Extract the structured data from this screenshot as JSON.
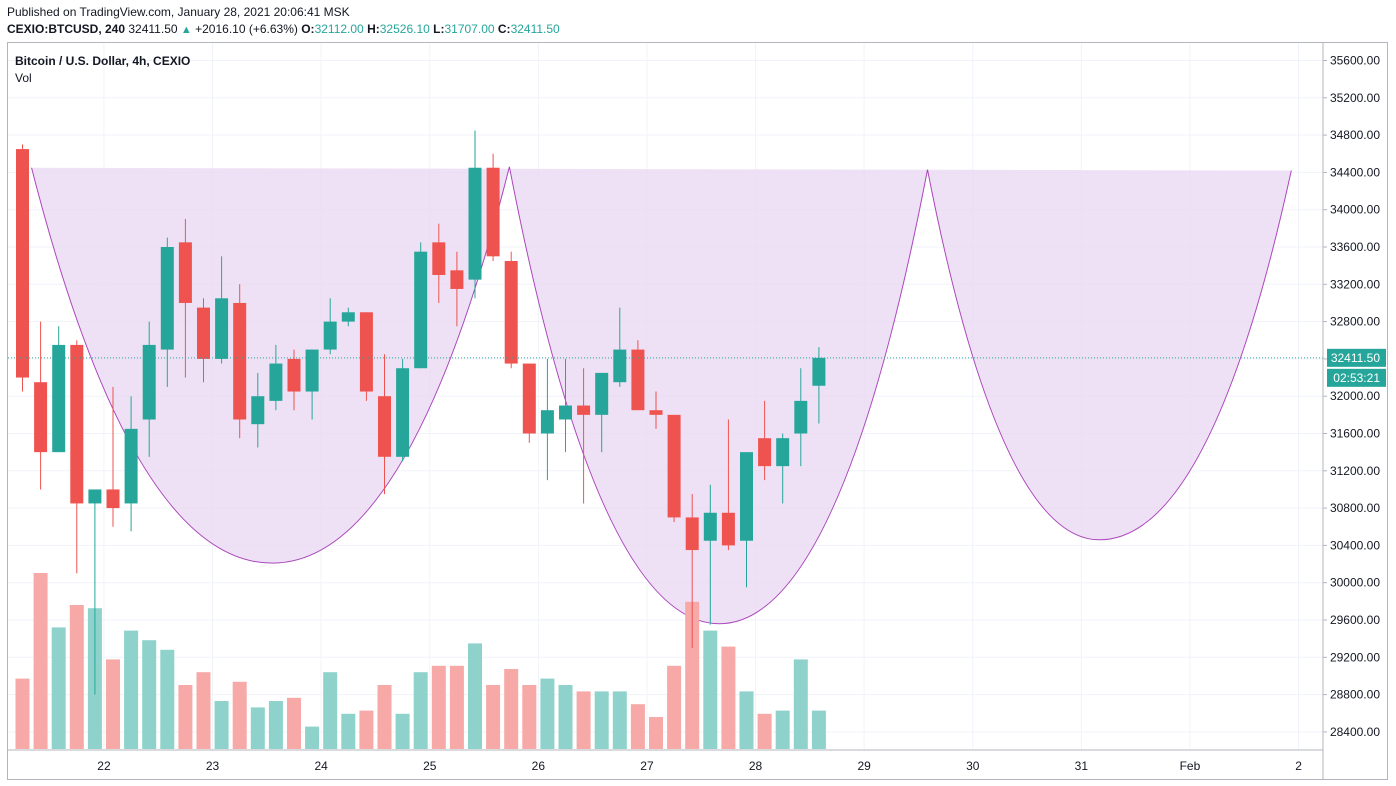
{
  "header": {
    "published": "Published on TradingView.com, January 28, 2021 20:06:41 MSK",
    "symbol": "CEXIO:BTCUSD, 240",
    "last": "32411.50",
    "arrow": "▲",
    "change": "+2016.10 (+6.63%)",
    "o_key": "O:",
    "o_val": "32112.00",
    "h_key": "H:",
    "h_val": "32526.10",
    "l_key": "L:",
    "l_val": "31707.00",
    "c_key": "C:",
    "c_val": "32411.50"
  },
  "legend": {
    "title": "Bitcoin / U.S. Dollar, 4h, CEXIO",
    "vol": "Vol"
  },
  "price_label": "32411.50",
  "countdown": "02:53:21",
  "colors": {
    "up": "#26a69a",
    "down": "#ef5350",
    "vol_up": "#8fd2cb",
    "vol_down": "#f6a9a7",
    "pattern_fill": "#e9d7f1",
    "pattern_line": "#ab47bc",
    "grid": "#f0f3fa"
  },
  "chart_data": {
    "type": "candlestick",
    "y_ticks": [
      35600,
      35200,
      34800,
      34400,
      34000,
      33600,
      33200,
      32800,
      32400,
      32000,
      31600,
      31200,
      30800,
      30400,
      30000,
      29600,
      29200,
      28800,
      28400
    ],
    "y_tick_labels": [
      "35600.00",
      "35200.00",
      "34800.00",
      "34400.00",
      "34000.00",
      "33600.00",
      "33200.00",
      "32800.00",
      "32400.00",
      "32000.00",
      "31600.00",
      "31200.00",
      "30800.00",
      "30400.00",
      "30000.00",
      "29600.00",
      "29200.00",
      "28800.00",
      "28400.00"
    ],
    "ylim": [
      28200,
      35850
    ],
    "x_labels": [
      {
        "label": "22",
        "x": 4.5
      },
      {
        "label": "23",
        "x": 10.5
      },
      {
        "label": "24",
        "x": 16.5
      },
      {
        "label": "25",
        "x": 22.5
      },
      {
        "label": "26",
        "x": 28.5
      },
      {
        "label": "27",
        "x": 34.5
      },
      {
        "label": "28",
        "x": 40.5
      },
      {
        "label": "29",
        "x": 46.5
      },
      {
        "label": "30",
        "x": 52.5
      },
      {
        "label": "31",
        "x": 58.5
      },
      {
        "label": "Feb",
        "x": 64.5
      },
      {
        "label": "2",
        "x": 70.5
      }
    ],
    "candles": [
      {
        "o": 34650,
        "h": 34700,
        "l": 32050,
        "c": 32200
      },
      {
        "o": 32150,
        "h": 32800,
        "l": 31000,
        "c": 31400
      },
      {
        "o": 31400,
        "h": 32750,
        "l": 31400,
        "c": 32550
      },
      {
        "o": 32550,
        "h": 32600,
        "l": 30100,
        "c": 30850
      },
      {
        "o": 30850,
        "h": 31000,
        "l": 28800,
        "c": 31000
      },
      {
        "o": 31000,
        "h": 32100,
        "l": 30600,
        "c": 30800
      },
      {
        "o": 30850,
        "h": 32000,
        "l": 30550,
        "c": 31650
      },
      {
        "o": 31750,
        "h": 32800,
        "l": 31350,
        "c": 32550
      },
      {
        "o": 32500,
        "h": 33700,
        "l": 32100,
        "c": 33600
      },
      {
        "o": 33650,
        "h": 33900,
        "l": 32200,
        "c": 33000
      },
      {
        "o": 32950,
        "h": 33050,
        "l": 32150,
        "c": 32400
      },
      {
        "o": 32400,
        "h": 33500,
        "l": 32350,
        "c": 33050
      },
      {
        "o": 33000,
        "h": 33200,
        "l": 31550,
        "c": 31750
      },
      {
        "o": 31700,
        "h": 32250,
        "l": 31450,
        "c": 32000
      },
      {
        "o": 31950,
        "h": 32550,
        "l": 31850,
        "c": 32350
      },
      {
        "o": 32400,
        "h": 32500,
        "l": 31850,
        "c": 32050
      },
      {
        "o": 32050,
        "h": 32500,
        "l": 31750,
        "c": 32500
      },
      {
        "o": 32500,
        "h": 33050,
        "l": 32450,
        "c": 32800
      },
      {
        "o": 32800,
        "h": 32950,
        "l": 32750,
        "c": 32900
      },
      {
        "o": 32900,
        "h": 32900,
        "l": 31950,
        "c": 32050
      },
      {
        "o": 32000,
        "h": 32450,
        "l": 30950,
        "c": 31350
      },
      {
        "o": 31350,
        "h": 32400,
        "l": 31300,
        "c": 32300
      },
      {
        "o": 32300,
        "h": 33650,
        "l": 32300,
        "c": 33550
      },
      {
        "o": 33650,
        "h": 33850,
        "l": 33000,
        "c": 33300
      },
      {
        "o": 33350,
        "h": 33550,
        "l": 32750,
        "c": 33150
      },
      {
        "o": 33250,
        "h": 34850,
        "l": 33050,
        "c": 34450
      },
      {
        "o": 34450,
        "h": 34600,
        "l": 33450,
        "c": 33500
      },
      {
        "o": 33450,
        "h": 33550,
        "l": 32300,
        "c": 32350
      },
      {
        "o": 32350,
        "h": 32300,
        "l": 31500,
        "c": 31600
      },
      {
        "o": 31600,
        "h": 32400,
        "l": 31100,
        "c": 31850
      },
      {
        "o": 31750,
        "h": 32400,
        "l": 31400,
        "c": 31900
      },
      {
        "o": 31900,
        "h": 32300,
        "l": 30850,
        "c": 31800
      },
      {
        "o": 31800,
        "h": 32250,
        "l": 31400,
        "c": 32250
      },
      {
        "o": 32150,
        "h": 32950,
        "l": 32100,
        "c": 32500
      },
      {
        "o": 32500,
        "h": 32600,
        "l": 31850,
        "c": 31850
      },
      {
        "o": 31850,
        "h": 32050,
        "l": 31650,
        "c": 31800
      },
      {
        "o": 31800,
        "h": 31800,
        "l": 30650,
        "c": 30700
      },
      {
        "o": 30700,
        "h": 30950,
        "l": 29300,
        "c": 30350
      },
      {
        "o": 30450,
        "h": 31050,
        "l": 29550,
        "c": 30750
      },
      {
        "o": 30750,
        "h": 31750,
        "l": 30350,
        "c": 30400
      },
      {
        "o": 30450,
        "h": 31400,
        "l": 29950,
        "c": 31400
      },
      {
        "o": 31550,
        "h": 31950,
        "l": 31100,
        "c": 31250
      },
      {
        "o": 31250,
        "h": 31600,
        "l": 30850,
        "c": 31550
      },
      {
        "o": 31600,
        "h": 32300,
        "l": 31250,
        "c": 31950
      },
      {
        "o": 32112,
        "h": 32526.1,
        "l": 31707,
        "c": 32411.5
      }
    ],
    "volume": [
      0.22,
      0.55,
      0.38,
      0.45,
      0.44,
      0.28,
      0.37,
      0.34,
      0.31,
      0.2,
      0.24,
      0.15,
      0.21,
      0.13,
      0.15,
      0.16,
      0.07,
      0.24,
      0.11,
      0.12,
      0.2,
      0.11,
      0.24,
      0.26,
      0.26,
      0.33,
      0.2,
      0.25,
      0.2,
      0.22,
      0.2,
      0.18,
      0.18,
      0.18,
      0.14,
      0.1,
      0.26,
      0.46,
      0.37,
      0.32,
      0.18,
      0.11,
      0.12,
      0.28,
      0.12
    ],
    "pattern": {
      "rim_start": [
        0.5,
        34450
      ],
      "rim_end": [
        70.1,
        34420
      ],
      "cups": [
        {
          "left": [
            0.5,
            34450
          ],
          "bottom": [
            13.8,
            30210
          ],
          "right": [
            26.9,
            34460
          ]
        },
        {
          "left": [
            26.9,
            34460
          ],
          "bottom": [
            38.5,
            29560
          ],
          "right": [
            50.0,
            34430
          ]
        },
        {
          "left": [
            50.0,
            34430
          ],
          "bottom": [
            59.5,
            30460
          ],
          "right": [
            70.1,
            34420
          ]
        }
      ]
    }
  }
}
